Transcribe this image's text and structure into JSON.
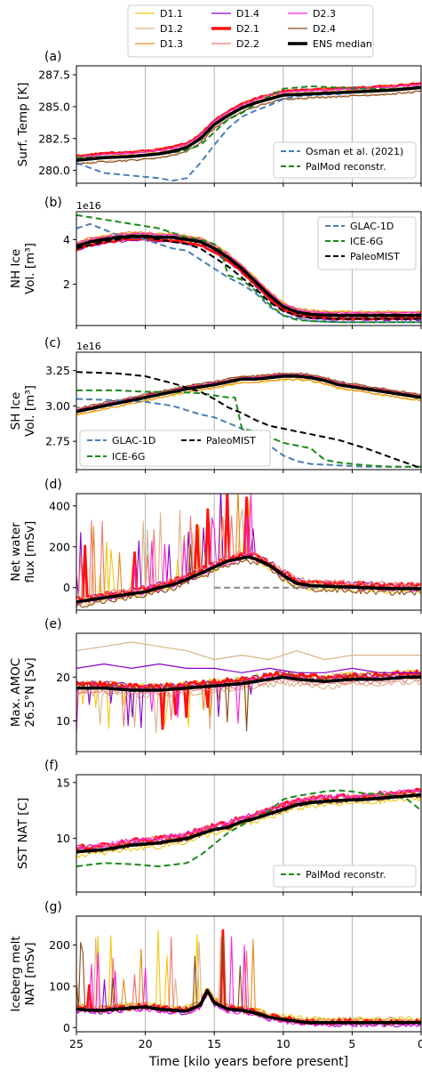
{
  "legend_top": [
    {
      "name": "D1.1",
      "color": "#f2c80f",
      "width": 1.2
    },
    {
      "name": "D1.2",
      "color": "#d9b48a",
      "width": 1.2
    },
    {
      "name": "D1.3",
      "color": "#e88a1a",
      "width": 1.2
    },
    {
      "name": "D1.4",
      "color": "#8b00c8",
      "width": 1.2
    },
    {
      "name": "D2.1",
      "color": "#ff1010",
      "width": 3.5
    },
    {
      "name": "D2.2",
      "color": "#f07878",
      "width": 1.2
    },
    {
      "name": "D2.3",
      "color": "#ff20e0",
      "width": 1.2
    },
    {
      "name": "D2.4",
      "color": "#8b4a1a",
      "width": 1.2
    },
    {
      "name": "ENS median",
      "color": "#000000",
      "width": 3.5
    }
  ],
  "x_axis": {
    "label": "Time [kilo years before present]",
    "ticks": [
      "25",
      "20",
      "15",
      "10",
      "5",
      "0"
    ],
    "tick_values": [
      25,
      20,
      15,
      10,
      5,
      0
    ],
    "range": [
      25,
      0
    ]
  },
  "chart_data": [
    {
      "type": "line",
      "panel": "(a)",
      "ylabel": "Surf. Temp [K]",
      "ylim": [
        279,
        288.2
      ],
      "yticks": [
        280.0,
        282.5,
        285.0,
        287.5
      ],
      "ytick_labels": [
        "280.0",
        "282.5",
        "285.0",
        "287.5"
      ],
      "exponent": "",
      "legend": [
        {
          "name": "Osman et al. (2021)",
          "color": "#4a7fb5",
          "dash": true
        },
        {
          "name": "PalMod reconstr.",
          "color": "#1a8a1a",
          "dash": true
        }
      ],
      "legend_pos": "bottom-right",
      "series": [
        {
          "name": "Osman et al. (2021)",
          "color": "#4a7fb5",
          "width": 2,
          "dash": true,
          "x": [
            25,
            23,
            21,
            19,
            18,
            17,
            16,
            15,
            14,
            13,
            12,
            11,
            10,
            9,
            8,
            6,
            4,
            2,
            0
          ],
          "y": [
            280.6,
            279.8,
            279.6,
            279.4,
            279.2,
            279.4,
            280.6,
            282.0,
            283.3,
            284.2,
            284.7,
            285.1,
            285.6,
            285.8,
            285.9,
            286.0,
            286.2,
            286.3,
            286.6
          ]
        },
        {
          "name": "PalMod reconstr.",
          "color": "#1a8a1a",
          "width": 2,
          "dash": true,
          "x": [
            25,
            22,
            20,
            18,
            17,
            16,
            15,
            14,
            13,
            12,
            11,
            10,
            8,
            6,
            4,
            2,
            0
          ],
          "y": [
            281.0,
            281.1,
            281.2,
            281.4,
            281.6,
            282.0,
            283.0,
            284.0,
            284.5,
            285.2,
            285.8,
            286.4,
            286.6,
            286.5,
            286.4,
            286.4,
            286.5
          ]
        },
        {
          "name": "ENS median",
          "color": "#000000",
          "width": 3.5,
          "dash": false,
          "x": [
            25,
            23,
            21,
            19,
            18,
            17,
            16,
            15,
            14,
            13,
            12,
            11,
            10,
            8,
            6,
            4,
            2,
            0
          ],
          "y": [
            280.8,
            281.0,
            281.1,
            281.3,
            281.5,
            281.8,
            282.5,
            283.6,
            284.3,
            284.9,
            285.3,
            285.6,
            285.9,
            286.0,
            286.1,
            286.2,
            286.3,
            286.5
          ]
        }
      ]
    },
    {
      "type": "line",
      "panel": "(b)",
      "ylabel": "NH Ice Vol. [m³]",
      "ylim": [
        0.15,
        5.25
      ],
      "yticks": [
        2,
        4
      ],
      "ytick_labels": [
        "2",
        "4"
      ],
      "exponent": "1e16",
      "legend": [
        {
          "name": "GLAC-1D",
          "color": "#4a7fb5",
          "dash": true
        },
        {
          "name": "ICE-6G",
          "color": "#1a8a1a",
          "dash": true
        },
        {
          "name": "PaleoMIST",
          "color": "#000000",
          "dash": true
        }
      ],
      "legend_pos": "top-right",
      "series": [
        {
          "name": "GLAC-1D",
          "color": "#4a7fb5",
          "width": 2,
          "dash": true,
          "x": [
            25,
            24,
            22,
            20,
            18,
            17,
            16,
            15,
            14,
            13,
            12,
            11,
            10,
            8,
            6,
            4,
            2,
            0
          ],
          "y": [
            4.5,
            4.7,
            4.2,
            4.0,
            3.6,
            3.5,
            3.1,
            2.7,
            2.3,
            2.0,
            1.6,
            1.0,
            0.6,
            0.35,
            0.3,
            0.3,
            0.3,
            0.3
          ]
        },
        {
          "name": "ICE-6G",
          "color": "#1a8a1a",
          "width": 2,
          "dash": true,
          "x": [
            25,
            23,
            21,
            19,
            18,
            17,
            16,
            15,
            14.5,
            14,
            13,
            12,
            11,
            10,
            9,
            8,
            6,
            4,
            2,
            0
          ],
          "y": [
            5.1,
            4.9,
            4.7,
            4.5,
            4.3,
            4.1,
            4.0,
            3.8,
            3.5,
            2.4,
            2.2,
            1.7,
            1.1,
            0.6,
            0.4,
            0.35,
            0.3,
            0.3,
            0.3,
            0.3
          ]
        },
        {
          "name": "PaleoMIST",
          "color": "#000000",
          "width": 2,
          "dash": true,
          "x": [
            25,
            23,
            21,
            20,
            19,
            18,
            17,
            16,
            15,
            14,
            13,
            12,
            11,
            10,
            9,
            8,
            6,
            4,
            2,
            0
          ],
          "y": [
            3.6,
            3.9,
            4.1,
            4.1,
            4.0,
            3.9,
            3.8,
            3.6,
            3.2,
            2.8,
            2.3,
            1.8,
            1.2,
            0.8,
            0.6,
            0.5,
            0.45,
            0.45,
            0.45,
            0.45
          ]
        },
        {
          "name": "ENS median",
          "color": "#000000",
          "width": 3.5,
          "dash": false,
          "x": [
            25,
            24,
            23,
            22,
            21,
            20,
            19,
            18,
            17,
            16,
            15,
            14,
            13,
            12,
            11,
            10,
            9,
            8,
            7,
            6,
            4,
            2,
            0
          ],
          "y": [
            3.7,
            3.9,
            4.0,
            4.1,
            4.15,
            4.15,
            4.1,
            4.1,
            4.0,
            3.9,
            3.6,
            3.2,
            2.7,
            2.1,
            1.5,
            1.0,
            0.75,
            0.65,
            0.62,
            0.6,
            0.6,
            0.6,
            0.6
          ]
        }
      ]
    },
    {
      "type": "line",
      "panel": "(c)",
      "ylabel": "SH Ice Vol. [m³]",
      "ylim": [
        2.55,
        3.38
      ],
      "yticks": [
        2.75,
        3.0,
        3.25
      ],
      "ytick_labels": [
        "2.75",
        "3.00",
        "3.25"
      ],
      "exponent": "1e16",
      "legend": [
        {
          "name": "GLAC-1D",
          "color": "#4a7fb5",
          "dash": true
        },
        {
          "name": "ICE-6G",
          "color": "#1a8a1a",
          "dash": true
        },
        {
          "name": "PaleoMIST",
          "color": "#000000",
          "dash": true
        }
      ],
      "legend_pos": "bottom-left",
      "series": [
        {
          "name": "GLAC-1D",
          "color": "#4a7fb5",
          "width": 2,
          "dash": true,
          "x": [
            25,
            22,
            20,
            18,
            17,
            16,
            15,
            14,
            13,
            12,
            11,
            10,
            9,
            8,
            6,
            4,
            2,
            0
          ],
          "y": [
            3.05,
            3.04,
            3.03,
            3.0,
            2.97,
            2.94,
            2.92,
            2.88,
            2.84,
            2.78,
            2.72,
            2.65,
            2.61,
            2.59,
            2.58,
            2.57,
            2.57,
            2.57
          ]
        },
        {
          "name": "ICE-6G",
          "color": "#1a8a1a",
          "width": 2,
          "dash": true,
          "x": [
            25,
            22,
            20,
            18,
            16,
            14,
            13.5,
            13,
            12,
            11,
            10,
            9,
            8,
            7,
            6,
            4,
            2,
            0
          ],
          "y": [
            3.11,
            3.11,
            3.1,
            3.1,
            3.09,
            3.06,
            3.06,
            2.84,
            2.82,
            2.78,
            2.74,
            2.72,
            2.7,
            2.62,
            2.6,
            2.58,
            2.57,
            2.57
          ]
        },
        {
          "name": "PaleoMIST",
          "color": "#000000",
          "width": 2,
          "dash": true,
          "x": [
            25,
            22,
            20,
            18,
            16,
            15,
            14,
            13,
            12,
            11,
            10,
            9,
            8,
            6,
            4,
            2,
            0
          ],
          "y": [
            3.24,
            3.23,
            3.21,
            3.16,
            3.1,
            3.05,
            2.99,
            2.95,
            2.9,
            2.86,
            2.84,
            2.82,
            2.8,
            2.76,
            2.7,
            2.63,
            2.56
          ]
        },
        {
          "name": "ENS median",
          "color": "#000000",
          "width": 3.5,
          "dash": false,
          "x": [
            25,
            23,
            21,
            19,
            17,
            15,
            14,
            13,
            12,
            11,
            10,
            9,
            8,
            7,
            6,
            4,
            2,
            0
          ],
          "y": [
            2.96,
            3.0,
            3.04,
            3.08,
            3.12,
            3.15,
            3.17,
            3.19,
            3.19,
            3.2,
            3.21,
            3.21,
            3.2,
            3.18,
            3.15,
            3.12,
            3.09,
            3.06
          ]
        }
      ]
    },
    {
      "type": "line",
      "panel": "(d)",
      "ylabel": "Net water flux [mSv]",
      "ylim": [
        -110,
        460
      ],
      "yticks": [
        0,
        200,
        400
      ],
      "ytick_labels": [
        "0",
        "200",
        "400"
      ],
      "exponent": "",
      "legend": [],
      "legend_pos": "none",
      "series": [
        {
          "name": "zero line",
          "color": "#888888",
          "width": 2,
          "dash": true,
          "x": [
            15,
            0
          ],
          "y": [
            0,
            0
          ]
        },
        {
          "name": "ENS median",
          "color": "#000000",
          "width": 3.5,
          "dash": false,
          "x": [
            25,
            24,
            23,
            22,
            21,
            20,
            19,
            18,
            17,
            16,
            15,
            14,
            13,
            12.5,
            12,
            11,
            10,
            9,
            8,
            6,
            4,
            2,
            0
          ],
          "y": [
            -70,
            -60,
            -50,
            -40,
            -30,
            -20,
            0,
            15,
            40,
            70,
            100,
            130,
            145,
            150,
            140,
            110,
            60,
            20,
            10,
            5,
            0,
            -5,
            -5
          ]
        }
      ]
    },
    {
      "type": "line",
      "panel": "(e)",
      "ylabel": "Max. AMOC 26.5°N [Sv]",
      "ylim": [
        3,
        30
      ],
      "yticks": [
        10,
        20
      ],
      "ytick_labels": [
        "10",
        "20"
      ],
      "exponent": "",
      "legend": [],
      "legend_pos": "none",
      "series": [
        {
          "name": "D1.2",
          "color": "#d9b48a",
          "width": 1.2,
          "dash": false,
          "x": [
            25,
            23,
            21,
            19,
            17,
            15,
            13,
            11,
            9,
            7,
            5,
            3,
            1,
            0
          ],
          "y": [
            26,
            27,
            28,
            27,
            26,
            24,
            25,
            24,
            26,
            24,
            25,
            25,
            25,
            25
          ]
        },
        {
          "name": "D1.4",
          "color": "#8b00c8",
          "width": 1.2,
          "dash": false,
          "x": [
            25,
            23,
            21,
            19,
            17,
            15,
            13,
            11,
            9,
            7,
            5,
            3,
            1,
            0
          ],
          "y": [
            22,
            23,
            22,
            23,
            22,
            22,
            21,
            22,
            21,
            21,
            22,
            21,
            21,
            21
          ]
        },
        {
          "name": "ENS median",
          "color": "#000000",
          "width": 3.5,
          "dash": false,
          "x": [
            25,
            23,
            21,
            19,
            17,
            15,
            13,
            11,
            10,
            9,
            7,
            5,
            3,
            1,
            0
          ],
          "y": [
            17.5,
            17.5,
            17.0,
            17.0,
            17.5,
            18.0,
            18.5,
            19.5,
            20.0,
            19.5,
            19.0,
            19.5,
            19.5,
            20.0,
            20.0
          ]
        }
      ]
    },
    {
      "type": "line",
      "panel": "(f)",
      "ylabel": "SST NAT [C]",
      "ylim": [
        5.2,
        15.7
      ],
      "yticks": [
        10,
        15
      ],
      "ytick_labels": [
        "10",
        "15"
      ],
      "exponent": "",
      "legend": [
        {
          "name": "PalMod reconstr.",
          "color": "#1a8a1a",
          "dash": true
        }
      ],
      "legend_pos": "bottom-right",
      "series": [
        {
          "name": "PalMod reconstr.",
          "color": "#1a8a1a",
          "width": 2,
          "dash": true,
          "x": [
            25,
            23,
            21,
            19,
            17,
            16,
            15,
            14,
            13,
            12,
            11,
            10,
            9,
            8,
            7,
            6,
            5,
            4,
            3,
            2,
            1,
            0
          ],
          "y": [
            7.5,
            7.8,
            7.7,
            7.5,
            7.8,
            8.5,
            9.5,
            10.5,
            11.2,
            11.8,
            12.5,
            13.5,
            13.8,
            14.0,
            14.2,
            14.3,
            14.2,
            14.0,
            14.0,
            13.8,
            13.5,
            12.5
          ]
        },
        {
          "name": "ENS median",
          "color": "#000000",
          "width": 3.5,
          "dash": false,
          "x": [
            25,
            23,
            21,
            19,
            17,
            16,
            15,
            14,
            13,
            12,
            11,
            10,
            9,
            8,
            6,
            4,
            2,
            0
          ],
          "y": [
            8.8,
            9.0,
            9.4,
            9.6,
            10.0,
            10.4,
            10.8,
            11.0,
            11.5,
            11.8,
            12.2,
            12.6,
            13.0,
            13.2,
            13.4,
            13.5,
            13.7,
            13.9
          ]
        }
      ]
    },
    {
      "type": "line",
      "panel": "(g)",
      "ylabel": "Iceberg melt NAT [mSv]",
      "ylim": [
        -10,
        270
      ],
      "yticks": [
        0,
        100,
        200
      ],
      "ytick_labels": [
        "0",
        "100",
        "200"
      ],
      "exponent": "",
      "legend": [],
      "legend_pos": "none",
      "series": [
        {
          "name": "ENS median",
          "color": "#000000",
          "width": 3.5,
          "dash": false,
          "x": [
            25,
            24,
            23,
            22,
            21,
            20,
            19,
            18,
            17,
            16,
            15.5,
            15,
            14,
            13,
            12,
            11,
            10,
            9,
            8,
            6,
            4,
            2,
            0
          ],
          "y": [
            45,
            42,
            42,
            45,
            48,
            50,
            45,
            42,
            40,
            55,
            90,
            60,
            45,
            42,
            35,
            25,
            20,
            15,
            12,
            12,
            12,
            12,
            12
          ]
        }
      ]
    }
  ]
}
